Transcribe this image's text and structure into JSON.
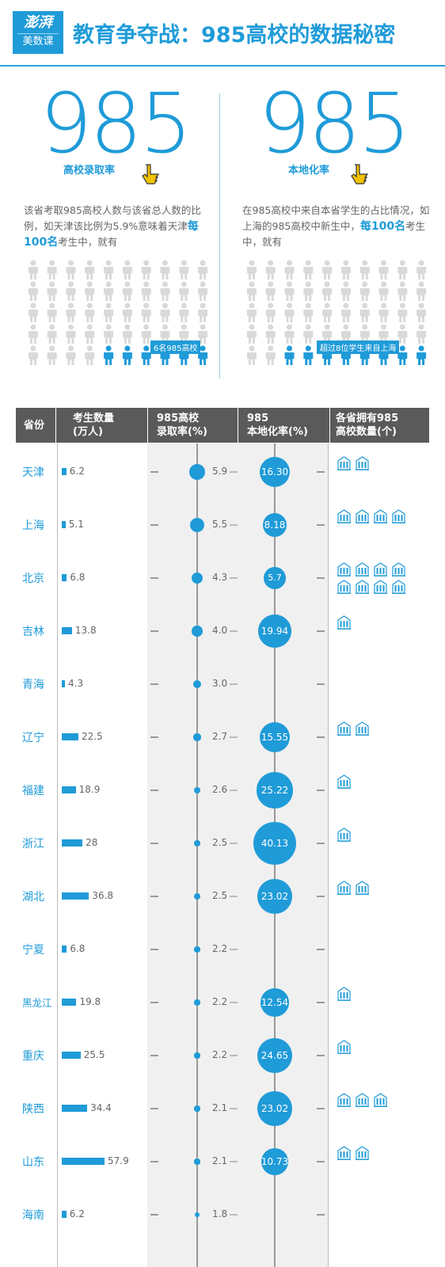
{
  "header": {
    "logo_line1": "澎湃",
    "logo_line2": "美数课",
    "title": "教育争夺战：985高校的数据秘密"
  },
  "panel_left": {
    "big_number": "985",
    "label": "高校录取率",
    "desc_pre": "该省考取985高校人数与该省总人数的比例，如天津该比例为5.9%意味着天津",
    "desc_bold": "每100名",
    "desc_post": "考生中，就有",
    "callout": "6名985高校",
    "highlight_count": 6
  },
  "panel_right": {
    "big_number": "985",
    "label": "本地化率",
    "desc_pre": "在985高校中来自本省学生的占比情况，如上海的985高校中新生中，",
    "desc_bold": "每100名",
    "desc_post": "考生中，就有",
    "callout": "超过8位学生来自上海",
    "highlight_count": 8
  },
  "table_header": {
    "col1": "省份",
    "col2": "考生数量\n(万人)",
    "col3": "985高校\n录取率(%)",
    "col4": "985\n本地化率(%)",
    "col5": "各省拥有985\n高校数量(个)"
  },
  "chart_data": {
    "type": "table",
    "columns": [
      "省份",
      "考生数量(万人)",
      "985高校录取率(%)",
      "985本地化率(%)",
      "各省拥有985高校数量(个)"
    ],
    "rows": [
      {
        "province": "天津",
        "examinees": "6.2",
        "admission_rate": "5.9",
        "localization_rate": "16.30",
        "universities": 2
      },
      {
        "province": "上海",
        "examinees": "5.1",
        "admission_rate": "5.5",
        "localization_rate": "8.18",
        "universities": 4
      },
      {
        "province": "北京",
        "examinees": "6.8",
        "admission_rate": "4.3",
        "localization_rate": "5.7",
        "universities": 8
      },
      {
        "province": "吉林",
        "examinees": "13.8",
        "admission_rate": "4.0",
        "localization_rate": "19.94",
        "universities": 1
      },
      {
        "province": "青海",
        "examinees": "4.3",
        "admission_rate": "3.0",
        "localization_rate": "",
        "universities": 0
      },
      {
        "province": "辽宁",
        "examinees": "22.5",
        "admission_rate": "2.7",
        "localization_rate": "15.55",
        "universities": 2
      },
      {
        "province": "福建",
        "examinees": "18.9",
        "admission_rate": "2.6",
        "localization_rate": "25.22",
        "universities": 1
      },
      {
        "province": "浙江",
        "examinees": "28",
        "admission_rate": "2.5",
        "localization_rate": "40.13",
        "universities": 1
      },
      {
        "province": "湖北",
        "examinees": "36.8",
        "admission_rate": "2.5",
        "localization_rate": "23.02",
        "universities": 2
      },
      {
        "province": "宁夏",
        "examinees": "6.8",
        "admission_rate": "2.2",
        "localization_rate": "",
        "universities": 0
      },
      {
        "province": "黑龙江",
        "examinees": "19.8",
        "admission_rate": "2.2",
        "localization_rate": "12.54",
        "universities": 1
      },
      {
        "province": "重庆",
        "examinees": "25.5",
        "admission_rate": "2.2",
        "localization_rate": "24.65",
        "universities": 1
      },
      {
        "province": "陕西",
        "examinees": "34.4",
        "admission_rate": "2.1",
        "localization_rate": "23.02",
        "universities": 3
      },
      {
        "province": "山东",
        "examinees": "57.9",
        "admission_rate": "2.1",
        "localization_rate": "10.73",
        "universities": 2
      },
      {
        "province": "海南",
        "examinees": "6.2",
        "admission_rate": "1.8",
        "localization_rate": "",
        "universities": 0
      }
    ]
  },
  "colors": {
    "accent": "#1f9bd8",
    "header_bg": "#5a5a5a",
    "person_grey": "#d9d9d9",
    "hand_yellow": "#f2c200"
  }
}
